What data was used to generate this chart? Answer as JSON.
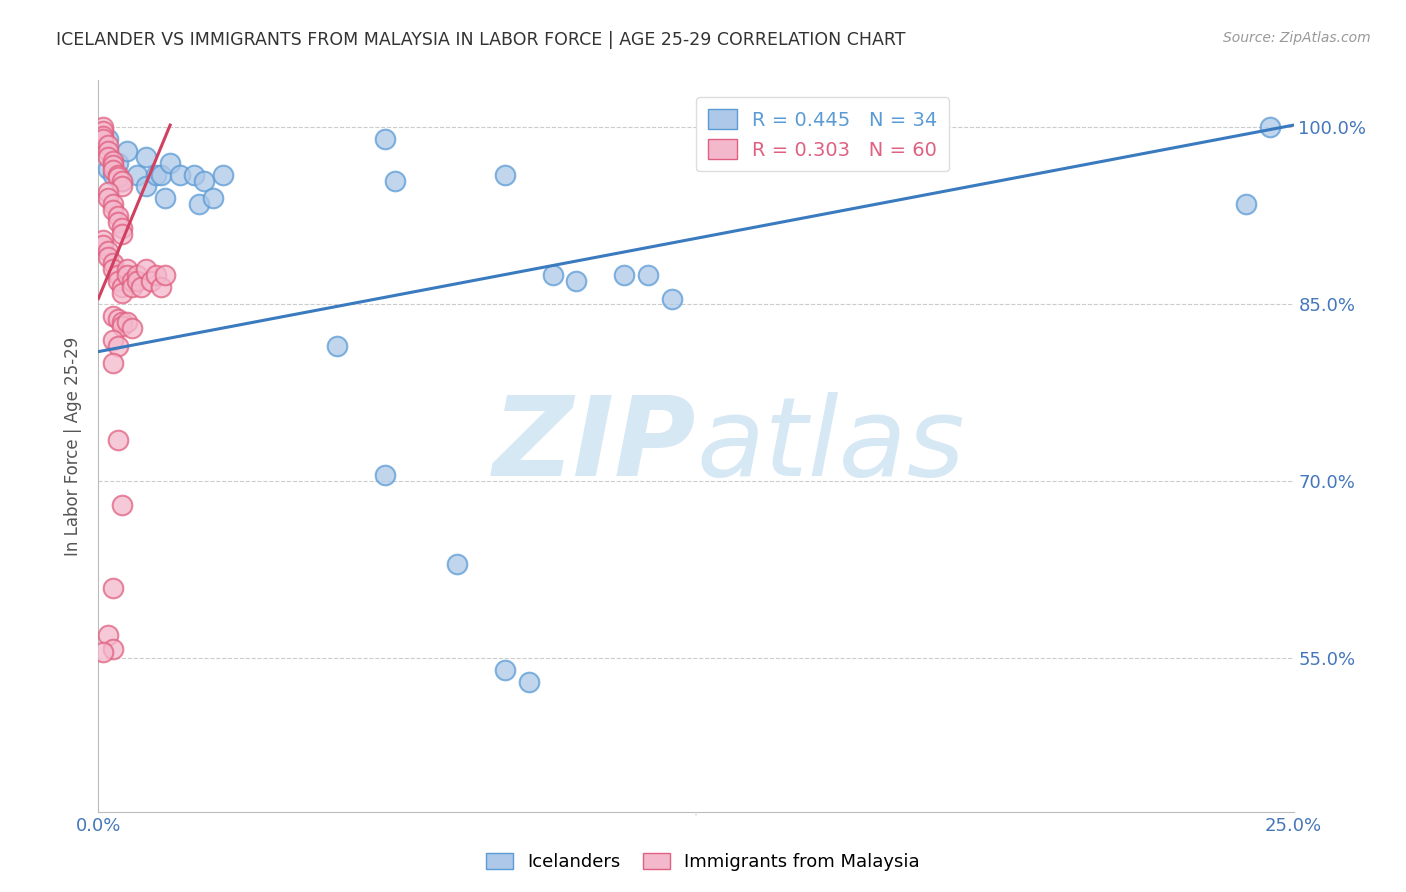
{
  "title": "ICELANDER VS IMMIGRANTS FROM MALAYSIA IN LABOR FORCE | AGE 25-29 CORRELATION CHART",
  "source": "Source: ZipAtlas.com",
  "ylabel": "In Labor Force | Age 25-29",
  "xlim": [
    0.0,
    0.25
  ],
  "ylim": [
    0.42,
    1.04
  ],
  "ytick_positions": [
    0.55,
    0.7,
    0.85,
    1.0
  ],
  "ytick_labels": [
    "55.0%",
    "70.0%",
    "85.0%",
    "100.0%"
  ],
  "xtick_positions": [
    0.0,
    0.05,
    0.1,
    0.15,
    0.2,
    0.25
  ],
  "xtick_labels": [
    "0.0%",
    "",
    "",
    "",
    "",
    "25.0%"
  ],
  "blue_fill": "#adc8e8",
  "blue_edge": "#5b9bd5",
  "pink_fill": "#f4b8cc",
  "pink_edge": "#e06080",
  "blue_line": "#3a7abf",
  "pink_line": "#d04060",
  "grid_color": "#cccccc",
  "bg_color": "#ffffff",
  "title_color": "#333333",
  "axis_tick_color": "#4477bb",
  "ylabel_color": "#555555",
  "watermark_color": "#d0e4f4",
  "source_color": "#999999",
  "blue_scatter": [
    [
      0.002,
      0.99
    ],
    [
      0.002,
      0.965
    ],
    [
      0.003,
      0.96
    ],
    [
      0.004,
      0.97
    ],
    [
      0.005,
      0.955
    ],
    [
      0.006,
      0.98
    ],
    [
      0.008,
      0.96
    ],
    [
      0.01,
      0.975
    ],
    [
      0.01,
      0.95
    ],
    [
      0.012,
      0.96
    ],
    [
      0.013,
      0.96
    ],
    [
      0.014,
      0.94
    ],
    [
      0.015,
      0.97
    ],
    [
      0.017,
      0.96
    ],
    [
      0.02,
      0.96
    ],
    [
      0.021,
      0.935
    ],
    [
      0.022,
      0.955
    ],
    [
      0.024,
      0.94
    ],
    [
      0.026,
      0.96
    ],
    [
      0.06,
      0.99
    ],
    [
      0.062,
      0.955
    ],
    [
      0.085,
      0.96
    ],
    [
      0.095,
      0.875
    ],
    [
      0.1,
      0.87
    ],
    [
      0.11,
      0.875
    ],
    [
      0.115,
      0.875
    ],
    [
      0.12,
      0.855
    ],
    [
      0.05,
      0.815
    ],
    [
      0.06,
      0.705
    ],
    [
      0.075,
      0.63
    ],
    [
      0.085,
      0.54
    ],
    [
      0.09,
      0.53
    ],
    [
      0.24,
      0.935
    ],
    [
      0.245,
      1.0
    ]
  ],
  "pink_scatter": [
    [
      0.001,
      1.0
    ],
    [
      0.001,
      0.997
    ],
    [
      0.001,
      0.993
    ],
    [
      0.001,
      0.99
    ],
    [
      0.002,
      0.985
    ],
    [
      0.002,
      0.98
    ],
    [
      0.002,
      0.975
    ],
    [
      0.003,
      0.972
    ],
    [
      0.003,
      0.968
    ],
    [
      0.003,
      0.964
    ],
    [
      0.004,
      0.96
    ],
    [
      0.004,
      0.958
    ],
    [
      0.005,
      0.955
    ],
    [
      0.005,
      0.95
    ],
    [
      0.002,
      0.945
    ],
    [
      0.002,
      0.94
    ],
    [
      0.003,
      0.935
    ],
    [
      0.003,
      0.93
    ],
    [
      0.004,
      0.925
    ],
    [
      0.004,
      0.92
    ],
    [
      0.005,
      0.915
    ],
    [
      0.005,
      0.91
    ],
    [
      0.001,
      0.905
    ],
    [
      0.001,
      0.9
    ],
    [
      0.002,
      0.895
    ],
    [
      0.002,
      0.89
    ],
    [
      0.003,
      0.885
    ],
    [
      0.003,
      0.88
    ],
    [
      0.004,
      0.875
    ],
    [
      0.004,
      0.87
    ],
    [
      0.005,
      0.865
    ],
    [
      0.005,
      0.86
    ],
    [
      0.006,
      0.88
    ],
    [
      0.006,
      0.875
    ],
    [
      0.007,
      0.87
    ],
    [
      0.007,
      0.865
    ],
    [
      0.008,
      0.875
    ],
    [
      0.008,
      0.87
    ],
    [
      0.009,
      0.865
    ],
    [
      0.01,
      0.88
    ],
    [
      0.011,
      0.87
    ],
    [
      0.012,
      0.875
    ],
    [
      0.013,
      0.865
    ],
    [
      0.014,
      0.875
    ],
    [
      0.003,
      0.84
    ],
    [
      0.004,
      0.838
    ],
    [
      0.005,
      0.835
    ],
    [
      0.005,
      0.832
    ],
    [
      0.006,
      0.835
    ],
    [
      0.007,
      0.83
    ],
    [
      0.003,
      0.82
    ],
    [
      0.004,
      0.815
    ],
    [
      0.003,
      0.8
    ],
    [
      0.004,
      0.735
    ],
    [
      0.005,
      0.68
    ],
    [
      0.003,
      0.61
    ],
    [
      0.002,
      0.57
    ],
    [
      0.003,
      0.558
    ],
    [
      0.001,
      0.555
    ]
  ]
}
